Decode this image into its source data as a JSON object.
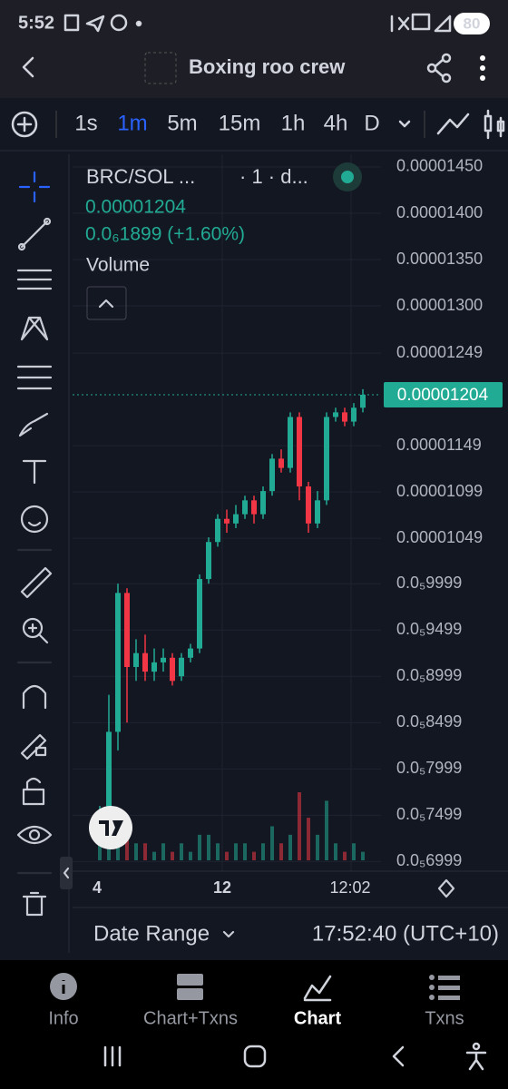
{
  "status_bar": {
    "time": "5:52",
    "battery": "80"
  },
  "app_bar": {
    "title": "Boxing roo crew"
  },
  "toolbar": {
    "intervals": [
      "1s",
      "1m",
      "5m",
      "15m",
      "1h",
      "4h",
      "D"
    ]
  },
  "legend": {
    "symbol": "BRC/SOL ...",
    "interval": "· 1 · d...",
    "price": "0.00001204",
    "change": "0.0₆1899 (+1.60%)",
    "indicator": "Volume"
  },
  "chart_data": {
    "type": "candlestick",
    "x_labels": [
      "4",
      "12",
      "12:02"
    ],
    "open": [
      7.43e-06,
      7.5e-06,
      8.4e-06,
      9.9e-06,
      9.1e-06,
      9.25e-06,
      9.05e-06,
      9.15e-06,
      9.2e-06,
      9e-06,
      9.2e-06,
      9.3e-06,
      1.005e-05,
      1.045e-05,
      1.07e-05,
      1.065e-05,
      1.075e-05,
      1.09e-05,
      1.075e-05,
      1.1e-05,
      1.135e-05,
      1.125e-05,
      1.18e-05,
      1.105e-05,
      1.065e-05,
      1.09e-05,
      1.18e-05,
      1.185e-05,
      1.175e-05,
      1.19e-05
    ],
    "close": [
      7.5e-06,
      8.4e-06,
      9.9e-06,
      9.1e-06,
      9.25e-06,
      9.05e-06,
      9.15e-06,
      9.2e-06,
      8.95e-06,
      9.2e-06,
      9.3e-06,
      1.005e-05,
      1.045e-05,
      1.07e-05,
      1.065e-05,
      1.075e-05,
      1.09e-05,
      1.075e-05,
      1.1e-05,
      1.135e-05,
      1.125e-05,
      1.18e-05,
      1.105e-05,
      1.065e-05,
      1.09e-05,
      1.18e-05,
      1.185e-05,
      1.175e-05,
      1.19e-05,
      1.204e-05
    ],
    "high": [
      7.6e-06,
      8.8e-06,
      1e-05,
      9.95e-06,
      9.4e-06,
      9.45e-06,
      9.3e-06,
      9.3e-06,
      9.25e-06,
      9.25e-06,
      9.35e-06,
      1.01e-05,
      1.05e-05,
      1.075e-05,
      1.08e-05,
      1.085e-05,
      1.095e-05,
      1.095e-05,
      1.105e-05,
      1.14e-05,
      1.145e-05,
      1.185e-05,
      1.185e-05,
      1.11e-05,
      1.1e-05,
      1.185e-05,
      1.19e-05,
      1.19e-05,
      1.195e-05,
      1.21e-05
    ],
    "low": [
      7.3e-06,
      7.4e-06,
      8.2e-06,
      8.5e-06,
      8.95e-06,
      8.95e-06,
      8.95e-06,
      9.05e-06,
      8.9e-06,
      8.95e-06,
      9.15e-06,
      9.25e-06,
      1e-05,
      1.04e-05,
      1.055e-05,
      1.06e-05,
      1.07e-05,
      1.065e-05,
      1.07e-05,
      1.095e-05,
      1.12e-05,
      1.12e-05,
      1.09e-05,
      1.055e-05,
      1.06e-05,
      1.085e-05,
      1.175e-05,
      1.17e-05,
      1.17e-05,
      1.185e-05
    ],
    "volume": [
      3,
      8,
      6,
      5,
      2,
      2,
      1,
      2,
      1,
      2,
      1,
      3,
      3,
      2,
      1,
      2,
      2,
      1,
      2,
      4,
      2,
      3,
      8,
      5,
      3,
      7,
      2,
      1,
      2,
      1
    ],
    "colors": {
      "up": "#22ab94",
      "down": "#f23645"
    },
    "ylim": [
      6.895e-06,
      1.4637e-05
    ],
    "yticks": [
      {
        "value": 1.45e-05,
        "label": "0.00001450"
      },
      {
        "value": 1.4e-05,
        "label": "0.00001400"
      },
      {
        "value": 1.35e-05,
        "label": "0.00001350"
      },
      {
        "value": 1.3e-05,
        "label": "0.00001300"
      },
      {
        "value": 1.249e-05,
        "label": "0.00001249"
      },
      {
        "value": 1.149e-05,
        "label": "0.00001149"
      },
      {
        "value": 1.099e-05,
        "label": "0.00001099"
      },
      {
        "value": 1.049e-05,
        "label": "0.00001049"
      },
      {
        "value": 9.999e-06,
        "label": "0.0₅9999"
      },
      {
        "value": 9.499e-06,
        "label": "0.0₅9499"
      },
      {
        "value": 8.999e-06,
        "label": "0.0₅8999"
      },
      {
        "value": 8.499e-06,
        "label": "0.0₅8499"
      },
      {
        "value": 7.999e-06,
        "label": "0.0₅7999"
      },
      {
        "value": 7.499e-06,
        "label": "0.0₅7499"
      },
      {
        "value": 6.999e-06,
        "label": "0.0₅6999"
      }
    ],
    "last_price": {
      "value": 1.204e-05,
      "label": "0.00001204"
    },
    "grid": true
  },
  "footer": {
    "date_range": "Date Range",
    "time": "17:52:40 (UTC+10)"
  },
  "nav": [
    "Info",
    "Chart+Txns",
    "Chart",
    "Txns"
  ]
}
